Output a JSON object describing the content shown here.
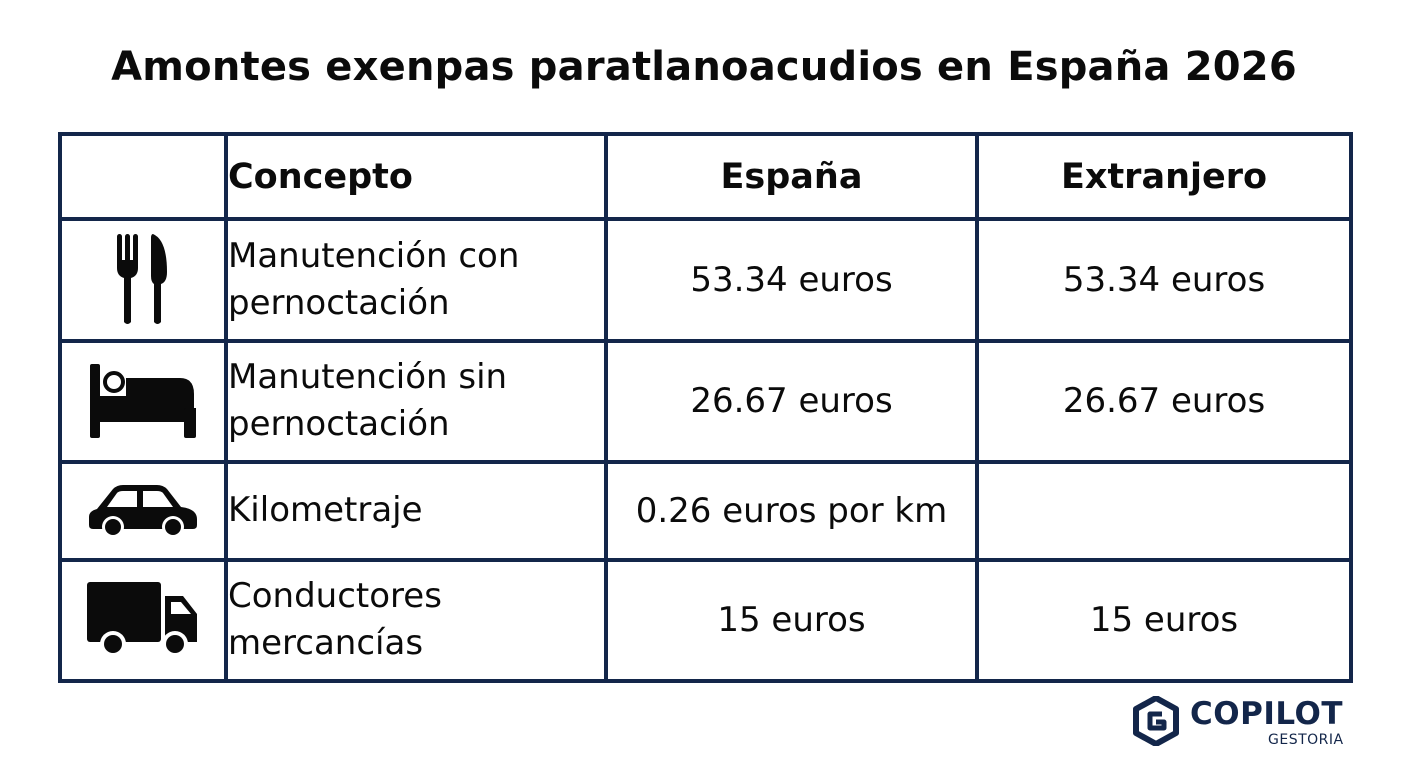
{
  "title": "Amontes exenpas paratlanoacudios en España 2026",
  "table": {
    "headers": {
      "icon": "",
      "concept": "Concepto",
      "spain": "España",
      "abroad": "Extranjero"
    },
    "rows": [
      {
        "icon": "fork-knife-icon",
        "concept": "Manutención con pernoctación",
        "spain": "53.34 euros",
        "abroad": "53.34 euros"
      },
      {
        "icon": "bed-icon",
        "concept": "Manutención sin pernoctación",
        "spain": "26.67 euros",
        "abroad": "26.67 euros"
      },
      {
        "icon": "car-icon",
        "concept": "Kilometraje",
        "spain": "0.26 euros por km",
        "abroad": ""
      },
      {
        "icon": "truck-icon",
        "concept": "Conductores mercancías",
        "spain": "15 euros",
        "abroad": "15 euros"
      }
    ]
  },
  "logo": {
    "name": "COPILOT",
    "subtitle": "GESTORIA"
  },
  "colors": {
    "border": "#13264a",
    "text": "#0b0b0b",
    "brand": "#13264a"
  }
}
